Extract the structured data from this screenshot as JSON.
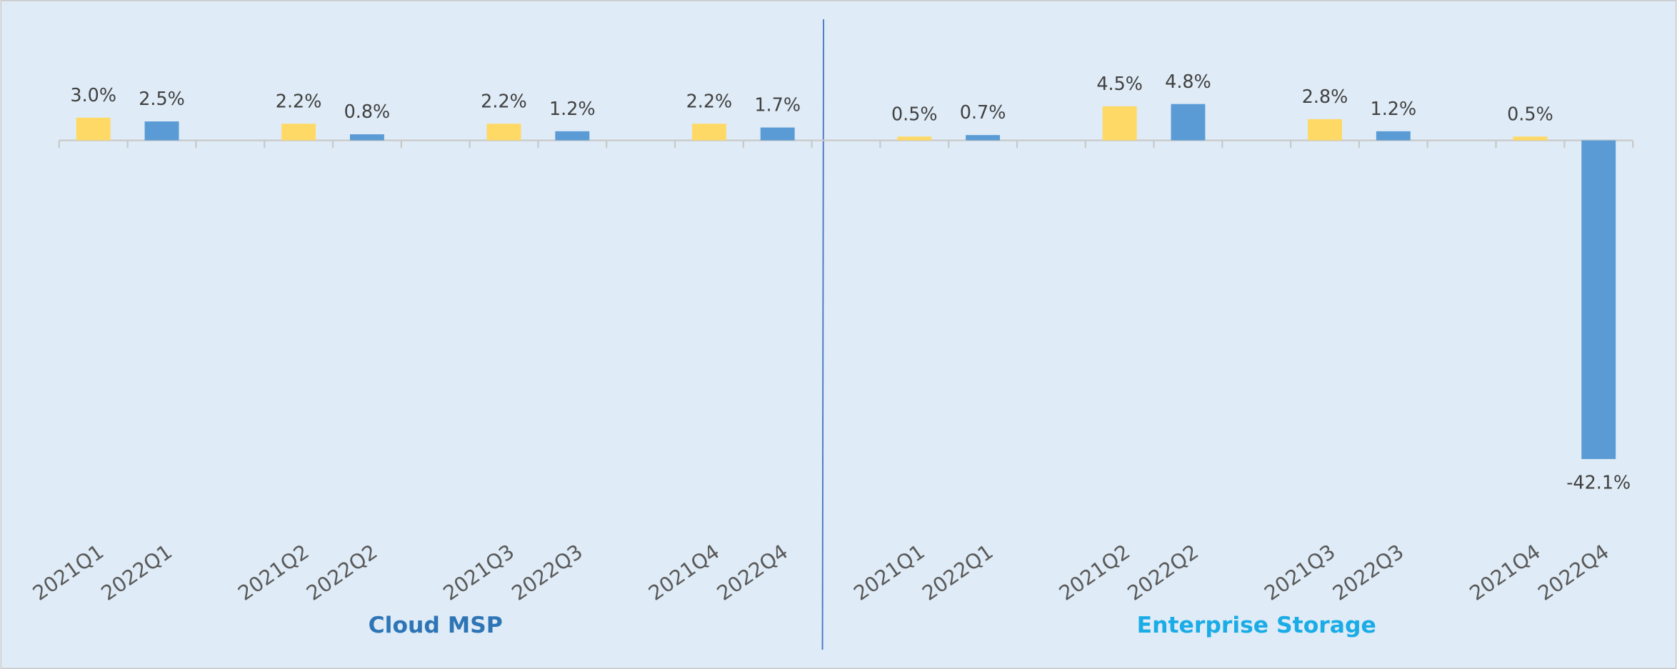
{
  "chart_data": {
    "type": "bar",
    "colors": [
      "#ffd966",
      "#5b9bd5"
    ],
    "ylim": [
      -44,
      16
    ],
    "groups": [
      {
        "label": "Cloud MSP",
        "label_color": "#2e75b6",
        "categories": [
          "2021Q1",
          "2022Q1",
          "2021Q2",
          "2022Q2",
          "2021Q3",
          "2022Q3",
          "2021Q4",
          "2022Q4"
        ],
        "values": [
          3.0,
          2.5,
          2.2,
          0.8,
          2.2,
          1.2,
          2.2,
          1.7
        ],
        "value_labels": [
          "3.0%",
          "2.5%",
          "2.2%",
          "0.8%",
          "2.2%",
          "1.2%",
          "2.2%",
          "1.7%"
        ]
      },
      {
        "label": "Enterprise Storage",
        "label_color": "#1aace6",
        "categories": [
          "2021Q1",
          "2022Q1",
          "2021Q2",
          "2022Q2",
          "2021Q3",
          "2022Q3",
          "2021Q4",
          "2022Q4"
        ],
        "values": [
          0.5,
          0.7,
          4.5,
          4.8,
          2.8,
          1.2,
          0.5,
          -42.1
        ],
        "value_labels": [
          "0.5%",
          "0.7%",
          "4.5%",
          "4.8%",
          "2.8%",
          "1.2%",
          "0.5%",
          "-42.1%"
        ]
      }
    ]
  }
}
